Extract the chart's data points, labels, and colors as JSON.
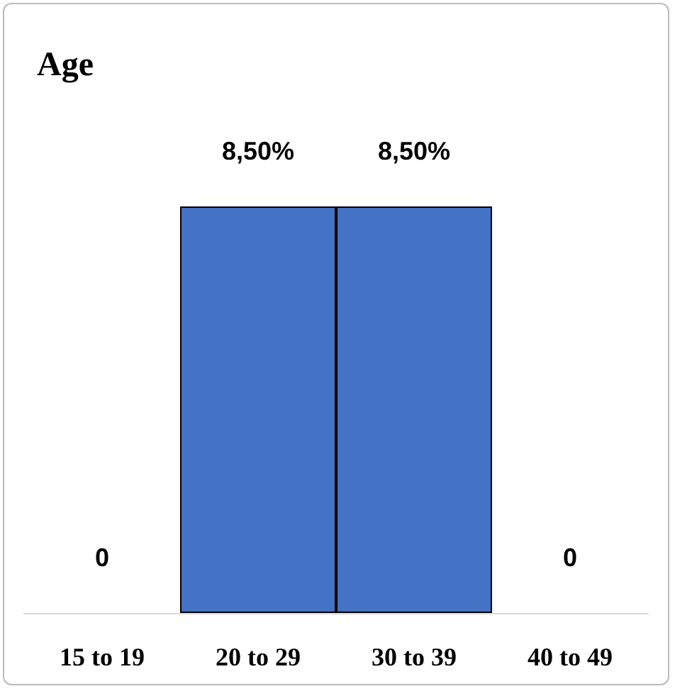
{
  "chart_data": {
    "type": "bar",
    "title": "Age",
    "categories": [
      "15 to 19",
      "20 to 29",
      "30 to 39",
      "40 to 49"
    ],
    "values": [
      0,
      8.5,
      8.5,
      0
    ],
    "value_labels": [
      "0",
      "8,50%",
      "8,50%",
      "0"
    ],
    "color": "#4472c4",
    "grid": false
  }
}
